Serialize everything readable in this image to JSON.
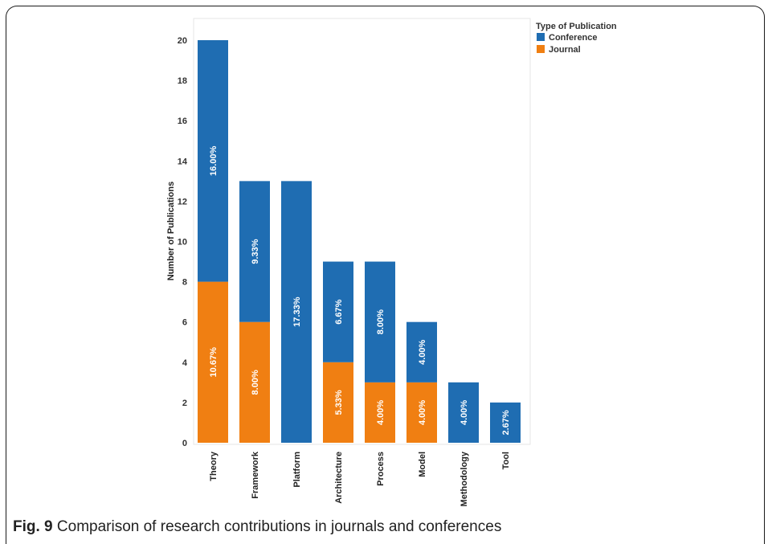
{
  "figure": {
    "caption_label": "Fig. 9",
    "caption_text": "Comparison of research contributions in journals and conferences"
  },
  "chart_data": {
    "type": "bar",
    "stacked": true,
    "categories": [
      "Theory",
      "Framework",
      "Platform",
      "Architecture",
      "Process",
      "Model",
      "Methodology",
      "Tool"
    ],
    "series": [
      {
        "name": "Journal",
        "color": "#f07f12",
        "values": [
          8,
          6,
          0,
          4,
          3,
          3,
          0,
          0
        ],
        "labels": [
          "10.67%",
          "8.00%",
          "",
          "5.33%",
          "4.00%",
          "4.00%",
          "",
          ""
        ]
      },
      {
        "name": "Conference",
        "color": "#1f6db2",
        "values": [
          12,
          7,
          13,
          5,
          6,
          3,
          3,
          2
        ],
        "labels": [
          "16.00%",
          "9.33%",
          "17.33%",
          "6.67%",
          "8.00%",
          "4.00%",
          "4.00%",
          "2.67%"
        ]
      }
    ],
    "ylabel": "Number of Publications",
    "xlabel": "",
    "ylim": [
      0,
      20
    ],
    "yticks": [
      0,
      2,
      4,
      6,
      8,
      10,
      12,
      14,
      16,
      18,
      20
    ],
    "legend": {
      "title": "Type of Publication",
      "placement": "top-right",
      "order": [
        "Conference",
        "Journal"
      ]
    },
    "grid": false
  }
}
